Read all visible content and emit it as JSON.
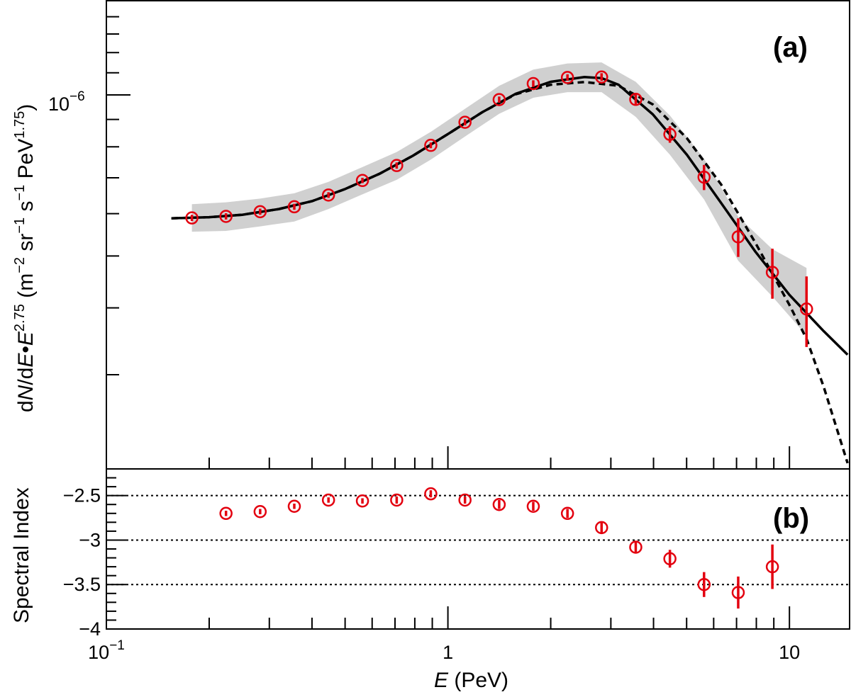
{
  "chart_data": [
    {
      "panel": "(a)",
      "type": "scatter",
      "xscale": "log",
      "yscale": "log",
      "xlim": [
        0.1,
        15
      ],
      "ylim": [
        2e-07,
        1.5e-06
      ],
      "ylabel": "dN/dE•E^2.75 (m^-2 sr^-1 s^-1 PeV^1.75)",
      "ytick_labels": [
        {
          "value": 1e-06,
          "label": "10^-6"
        }
      ],
      "series": [
        {
          "kind": "points_with_errors",
          "points": [
            {
              "x": 0.178,
              "y": 5.89e-07,
              "err": 8e-09
            },
            {
              "x": 0.224,
              "y": 5.93e-07,
              "err": 8e-09
            },
            {
              "x": 0.282,
              "y": 6.05e-07,
              "err": 8e-09
            },
            {
              "x": 0.355,
              "y": 6.18e-07,
              "err": 8e-09
            },
            {
              "x": 0.447,
              "y": 6.5e-07,
              "err": 8e-09
            },
            {
              "x": 0.562,
              "y": 6.92e-07,
              "err": 8e-09
            },
            {
              "x": 0.708,
              "y": 7.38e-07,
              "err": 1e-08
            },
            {
              "x": 0.891,
              "y": 8.05e-07,
              "err": 1e-08
            },
            {
              "x": 1.122,
              "y": 8.89e-07,
              "err": 1.2e-08
            },
            {
              "x": 1.413,
              "y": 9.8e-07,
              "err": 1.3e-08
            },
            {
              "x": 1.778,
              "y": 1.05e-06,
              "err": 1.5e-08
            },
            {
              "x": 2.239,
              "y": 1.078e-06,
              "err": 1.5e-08
            },
            {
              "x": 2.818,
              "y": 1.08e-06,
              "err": 1.8e-08
            },
            {
              "x": 3.548,
              "y": 9.81e-07,
              "err": 2.2e-08
            },
            {
              "x": 4.467,
              "y": 8.44e-07,
              "err": 3e-08
            },
            {
              "x": 5.623,
              "y": 7.02e-07,
              "err": 3.8e-08
            },
            {
              "x": 7.079,
              "y": 5.43e-07,
              "err": 4.5e-08
            },
            {
              "x": 8.913,
              "y": 4.66e-07,
              "err": 5e-08
            },
            {
              "x": 11.22,
              "y": 3.98e-07,
              "err": 6e-08
            }
          ]
        },
        {
          "kind": "band",
          "upper": [
            {
              "x": 0.178,
              "y": 6.25e-07
            },
            {
              "x": 0.224,
              "y": 6.3e-07
            },
            {
              "x": 0.282,
              "y": 6.4e-07
            },
            {
              "x": 0.355,
              "y": 6.55e-07
            },
            {
              "x": 0.447,
              "y": 6.88e-07
            },
            {
              "x": 0.562,
              "y": 7.33e-07
            },
            {
              "x": 0.708,
              "y": 7.82e-07
            },
            {
              "x": 0.891,
              "y": 8.53e-07
            },
            {
              "x": 1.122,
              "y": 9.42e-07
            },
            {
              "x": 1.413,
              "y": 1.04e-06
            },
            {
              "x": 1.778,
              "y": 1.115e-06
            },
            {
              "x": 2.239,
              "y": 1.145e-06
            },
            {
              "x": 2.818,
              "y": 1.15e-06
            },
            {
              "x": 3.548,
              "y": 1.058e-06
            },
            {
              "x": 4.467,
              "y": 9.15e-07
            },
            {
              "x": 5.623,
              "y": 7.6e-07
            },
            {
              "x": 7.079,
              "y": 5.92e-07
            },
            {
              "x": 8.913,
              "y": 5.15e-07
            },
            {
              "x": 11.22,
              "y": 4.75e-07
            }
          ],
          "lower": [
            {
              "x": 0.178,
              "y": 5.55e-07
            },
            {
              "x": 0.224,
              "y": 5.57e-07
            },
            {
              "x": 0.282,
              "y": 5.68e-07
            },
            {
              "x": 0.355,
              "y": 5.8e-07
            },
            {
              "x": 0.447,
              "y": 6.12e-07
            },
            {
              "x": 0.562,
              "y": 6.52e-07
            },
            {
              "x": 0.708,
              "y": 6.94e-07
            },
            {
              "x": 0.891,
              "y": 7.57e-07
            },
            {
              "x": 1.122,
              "y": 8.36e-07
            },
            {
              "x": 1.413,
              "y": 9.22e-07
            },
            {
              "x": 1.778,
              "y": 9.88e-07
            },
            {
              "x": 2.239,
              "y": 1.012e-06
            },
            {
              "x": 2.818,
              "y": 1.012e-06
            },
            {
              "x": 3.548,
              "y": 9.1e-07
            },
            {
              "x": 4.467,
              "y": 7.73e-07
            },
            {
              "x": 5.623,
              "y": 6.38e-07
            },
            {
              "x": 7.079,
              "y": 4.9e-07
            },
            {
              "x": 8.913,
              "y": 4.2e-07
            },
            {
              "x": 11.22,
              "y": 3.55e-07
            }
          ]
        },
        {
          "kind": "line",
          "style": "solid",
          "points": [
            {
              "x": 0.155,
              "y": 5.88e-07
            },
            {
              "x": 0.2,
              "y": 5.91e-07
            },
            {
              "x": 0.25,
              "y": 5.97e-07
            },
            {
              "x": 0.32,
              "y": 6.12e-07
            },
            {
              "x": 0.4,
              "y": 6.33e-07
            },
            {
              "x": 0.5,
              "y": 6.67e-07
            },
            {
              "x": 0.63,
              "y": 7.12e-07
            },
            {
              "x": 0.79,
              "y": 7.7e-07
            },
            {
              "x": 1.0,
              "y": 8.45e-07
            },
            {
              "x": 1.26,
              "y": 9.28e-07
            },
            {
              "x": 1.58,
              "y": 1.005e-06
            },
            {
              "x": 2.0,
              "y": 1.058e-06
            },
            {
              "x": 2.51,
              "y": 1.08e-06
            },
            {
              "x": 2.82,
              "y": 1.075e-06
            },
            {
              "x": 3.16,
              "y": 1.045e-06
            },
            {
              "x": 3.98,
              "y": 9.2e-07
            },
            {
              "x": 5.01,
              "y": 7.73e-07
            },
            {
              "x": 6.31,
              "y": 6.28e-07
            },
            {
              "x": 7.94,
              "y": 5.1e-07
            },
            {
              "x": 10.0,
              "y": 4.23e-07
            },
            {
              "x": 12.59,
              "y": 3.62e-07
            },
            {
              "x": 14.8,
              "y": 3.27e-07
            }
          ]
        },
        {
          "kind": "line",
          "style": "dashed",
          "points": [
            {
              "x": 0.155,
              "y": 5.88e-07
            },
            {
              "x": 0.2,
              "y": 5.91e-07
            },
            {
              "x": 0.25,
              "y": 5.97e-07
            },
            {
              "x": 0.32,
              "y": 6.12e-07
            },
            {
              "x": 0.4,
              "y": 6.33e-07
            },
            {
              "x": 0.5,
              "y": 6.67e-07
            },
            {
              "x": 0.63,
              "y": 7.12e-07
            },
            {
              "x": 0.79,
              "y": 7.7e-07
            },
            {
              "x": 1.0,
              "y": 8.45e-07
            },
            {
              "x": 1.26,
              "y": 9.28e-07
            },
            {
              "x": 1.58,
              "y": 1.003e-06
            },
            {
              "x": 2.0,
              "y": 1.045e-06
            },
            {
              "x": 2.51,
              "y": 1.057e-06
            },
            {
              "x": 3.16,
              "y": 1.04e-06
            },
            {
              "x": 3.98,
              "y": 9.6e-07
            },
            {
              "x": 5.01,
              "y": 8.3e-07
            },
            {
              "x": 6.31,
              "y": 6.8e-07
            },
            {
              "x": 7.94,
              "y": 5.3e-07
            },
            {
              "x": 10.0,
              "y": 4.05e-07
            },
            {
              "x": 11.22,
              "y": 3.5e-07
            },
            {
              "x": 12.59,
              "y": 2.85e-07
            },
            {
              "x": 14.8,
              "y": 2.05e-07
            }
          ]
        }
      ]
    },
    {
      "panel": "(b)",
      "type": "scatter",
      "xscale": "log",
      "xlim": [
        0.1,
        15
      ],
      "ylim": [
        -4,
        -2.2
      ],
      "ylabel": "Spectral Index",
      "yticks": [
        -4,
        -3.5,
        -3,
        -2.5
      ],
      "ytick_labels": [
        "−4",
        "−3.5",
        "−3",
        "−2.5"
      ],
      "reference_lines": [
        -2.5,
        -3,
        -3.5
      ],
      "points": [
        {
          "x": 0.224,
          "y": -2.7,
          "err": 0.03
        },
        {
          "x": 0.282,
          "y": -2.68,
          "err": 0.03
        },
        {
          "x": 0.355,
          "y": -2.62,
          "err": 0.03
        },
        {
          "x": 0.447,
          "y": -2.55,
          "err": 0.03
        },
        {
          "x": 0.562,
          "y": -2.56,
          "err": 0.03
        },
        {
          "x": 0.708,
          "y": -2.55,
          "err": 0.04
        },
        {
          "x": 0.891,
          "y": -2.48,
          "err": 0.04
        },
        {
          "x": 1.122,
          "y": -2.55,
          "err": 0.04
        },
        {
          "x": 1.413,
          "y": -2.6,
          "err": 0.05
        },
        {
          "x": 1.778,
          "y": -2.62,
          "err": 0.05
        },
        {
          "x": 2.239,
          "y": -2.7,
          "err": 0.05
        },
        {
          "x": 2.818,
          "y": -2.86,
          "err": 0.06
        },
        {
          "x": 3.548,
          "y": -3.08,
          "err": 0.07
        },
        {
          "x": 4.467,
          "y": -3.21,
          "err": 0.1
        },
        {
          "x": 5.623,
          "y": -3.5,
          "err": 0.14
        },
        {
          "x": 7.079,
          "y": -3.59,
          "err": 0.18
        },
        {
          "x": 8.913,
          "y": -3.3,
          "err": 0.25
        }
      ]
    }
  ],
  "x_axis": {
    "label_var": "E",
    "label_unit": " (PeV)",
    "tick_labels": [
      {
        "value": 0.1,
        "base": "10",
        "exp": "−1"
      },
      {
        "value": 1,
        "base": "1",
        "exp": ""
      },
      {
        "value": 10,
        "base": "10",
        "exp": ""
      }
    ]
  },
  "text": {
    "panel_a": "(a)",
    "panel_b": "(b)",
    "ytick_a_base": "10",
    "ytick_a_exp": "−6",
    "ylabel_a": {
      "d1": "d",
      "N": "N",
      "d2": "/d",
      "E1": "E",
      "dot": "•",
      "E2": "E",
      "exp1": "2.75",
      "open": " (m",
      "exp2": "−2",
      "sr": " sr",
      "exp3": "−1",
      "s": " s",
      "exp4": "−1",
      "pev": " PeV",
      "exp5": "1.75",
      "close": ")"
    },
    "ylabel_b": "Spectral Index"
  },
  "colors": {
    "points": "#e3000f",
    "band": "#c8c8c8",
    "lines": "#000000"
  }
}
